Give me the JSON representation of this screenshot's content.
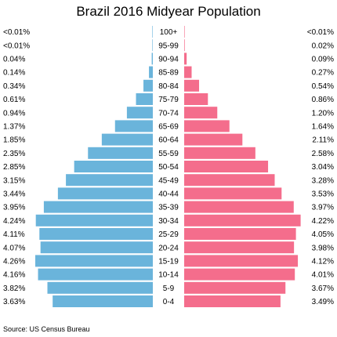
{
  "chart_data": {
    "type": "bar",
    "title": "Brazil 2016 Midyear Population",
    "source": "Source: US Census Bureau",
    "categories": [
      "100+",
      "95-99",
      "90-94",
      "85-89",
      "80-84",
      "75-79",
      "70-74",
      "65-69",
      "60-64",
      "55-59",
      "50-54",
      "45-49",
      "40-44",
      "35-39",
      "30-34",
      "25-29",
      "20-24",
      "15-19",
      "10-14",
      "5-9",
      "0-4"
    ],
    "series": [
      {
        "side": "left",
        "color": "#6ab4db",
        "values": [
          0.005,
          0.005,
          0.04,
          0.14,
          0.34,
          0.61,
          0.94,
          1.37,
          1.85,
          2.35,
          2.85,
          3.15,
          3.44,
          3.95,
          4.24,
          4.11,
          4.07,
          4.26,
          4.16,
          3.82,
          3.63
        ],
        "labels": [
          "<0.01%",
          "<0.01%",
          "0.04%",
          "0.14%",
          "0.34%",
          "0.61%",
          "0.94%",
          "1.37%",
          "1.85%",
          "2.35%",
          "2.85%",
          "3.15%",
          "3.44%",
          "3.95%",
          "4.24%",
          "4.11%",
          "4.07%",
          "4.26%",
          "4.16%",
          "3.82%",
          "3.63%"
        ]
      },
      {
        "side": "right",
        "color": "#f46d8c",
        "values": [
          0.005,
          0.02,
          0.09,
          0.27,
          0.54,
          0.86,
          1.2,
          1.64,
          2.11,
          2.58,
          3.04,
          3.28,
          3.53,
          3.97,
          4.22,
          4.05,
          3.98,
          4.12,
          4.01,
          3.67,
          3.49
        ],
        "labels": [
          "<0.01%",
          "0.02%",
          "0.09%",
          "0.27%",
          "0.54%",
          "0.86%",
          "1.20%",
          "1.64%",
          "2.11%",
          "2.58%",
          "3.04%",
          "3.28%",
          "3.53%",
          "3.97%",
          "4.22%",
          "4.05%",
          "3.98%",
          "4.12%",
          "4.01%",
          "3.67%",
          "3.49%"
        ]
      }
    ],
    "xlim": [
      0,
      4.26
    ],
    "grid": false,
    "legend": "none"
  }
}
